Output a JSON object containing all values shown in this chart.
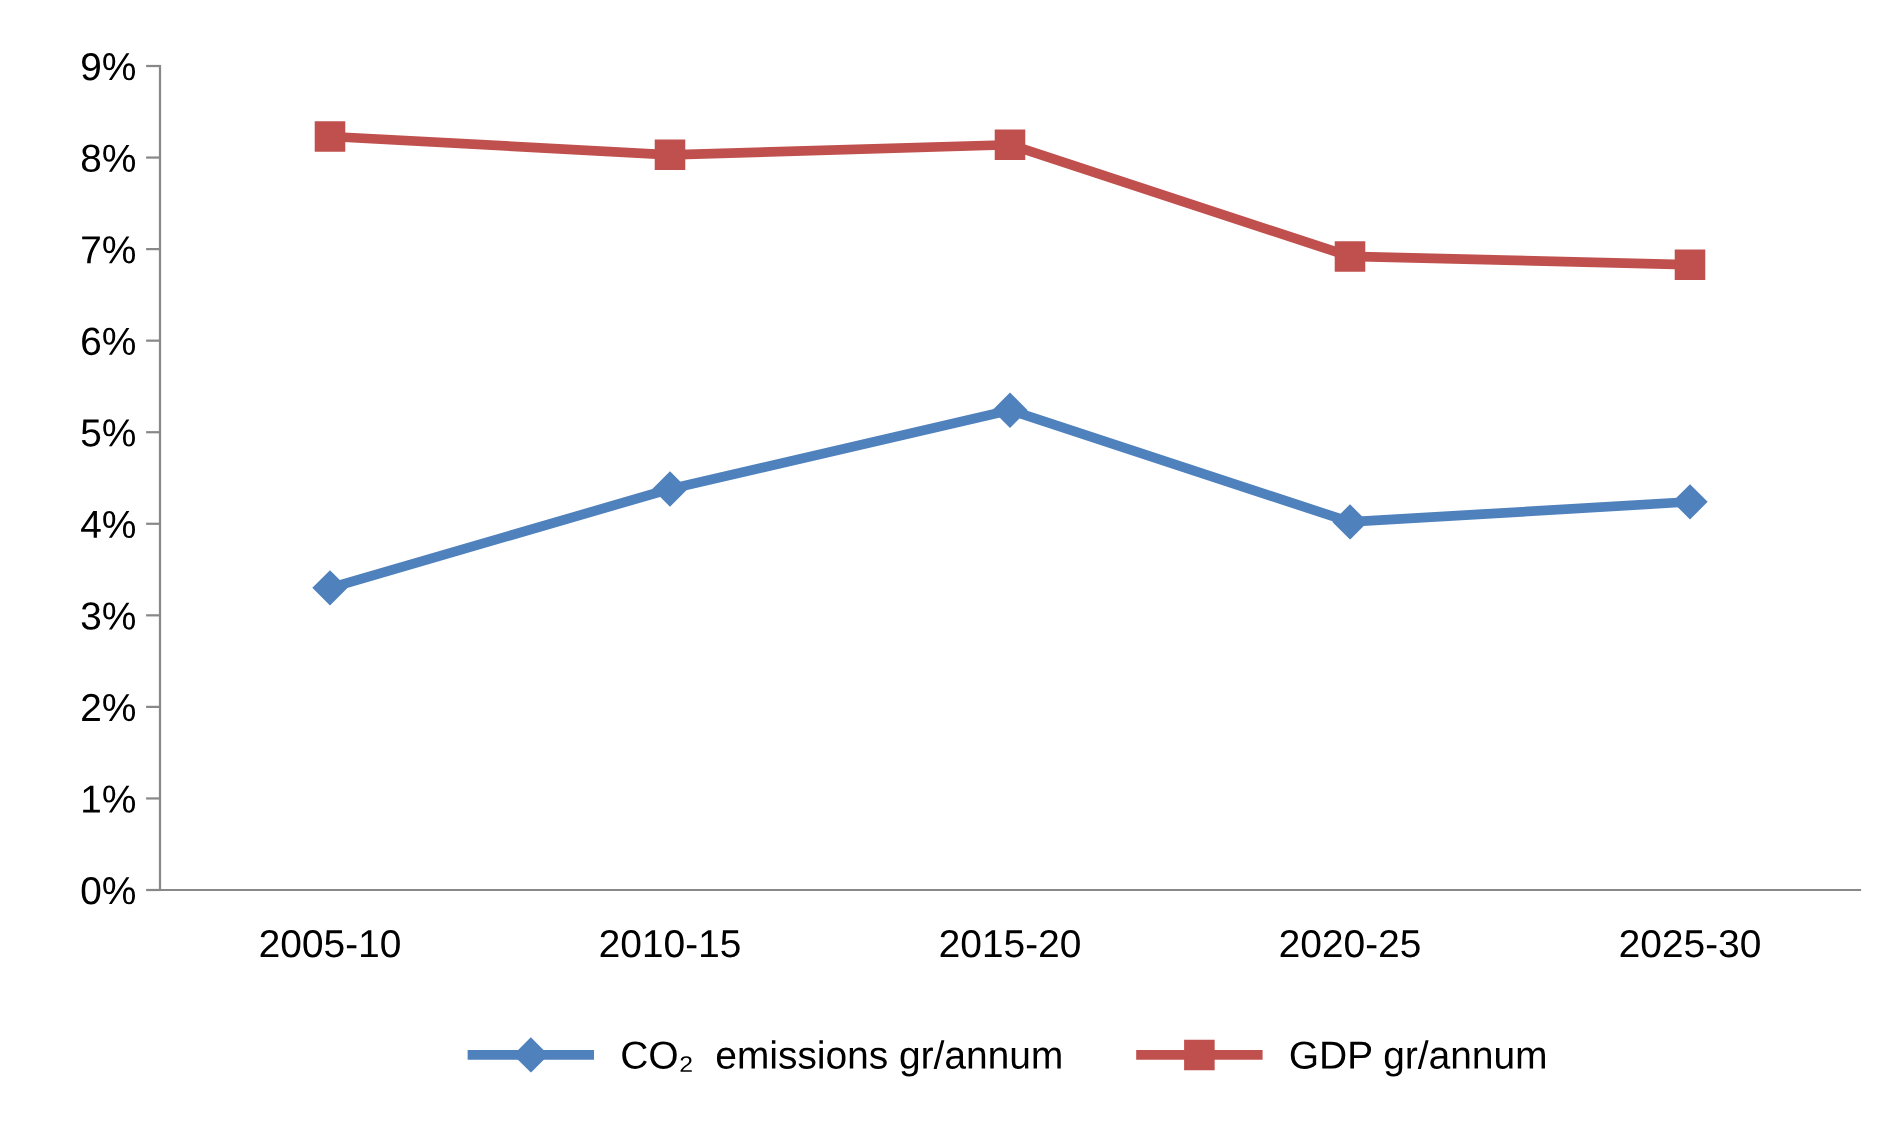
{
  "chart_data": {
    "type": "line",
    "categories": [
      "2005-10",
      "2010-15",
      "2015-20",
      "2020-25",
      "2025-30"
    ],
    "series": [
      {
        "name": "CO₂  emissions gr/annum",
        "color": "#4f81bd",
        "marker": "diamond",
        "values": [
          3.3,
          4.38,
          5.24,
          4.02,
          4.24
        ]
      },
      {
        "name": "GDP gr/annum",
        "color": "#c0504d",
        "marker": "square",
        "values": [
          8.23,
          8.03,
          8.14,
          6.92,
          6.83
        ]
      }
    ],
    "ylim": [
      0,
      9
    ],
    "yticks": [
      {
        "value": 0,
        "label": "0%"
      },
      {
        "value": 1,
        "label": "1%"
      },
      {
        "value": 2,
        "label": "2%"
      },
      {
        "value": 3,
        "label": "3%"
      },
      {
        "value": 4,
        "label": "4%"
      },
      {
        "value": 5,
        "label": "5%"
      },
      {
        "value": 6,
        "label": "6%"
      },
      {
        "value": 7,
        "label": "7%"
      },
      {
        "value": 8,
        "label": "8%"
      },
      {
        "value": 9,
        "label": "9%"
      }
    ],
    "grid": false,
    "legend": "bottom",
    "line_style": "solid"
  }
}
